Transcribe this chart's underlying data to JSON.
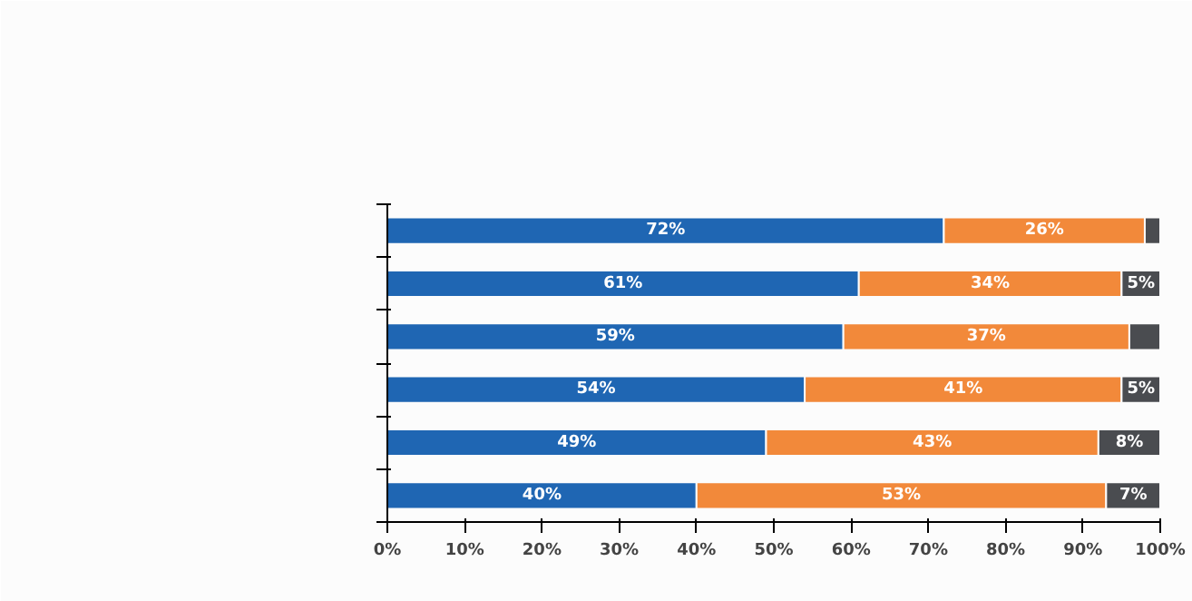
{
  "chart_data": {
    "type": "bar",
    "orientation": "horizontal",
    "stacked": true,
    "categories": [
      null,
      null,
      null,
      null,
      null,
      null
    ],
    "series": [
      {
        "color": "#1f66b3",
        "values": [
          72,
          61,
          59,
          54,
          49,
          40
        ],
        "value_labels": [
          "72%",
          "61%",
          "59%",
          "54%",
          "49%",
          "40%"
        ]
      },
      {
        "color": "#f2893a",
        "values": [
          26,
          34,
          37,
          41,
          43,
          53
        ],
        "value_labels": [
          "26%",
          "34%",
          "37%",
          "41%",
          "43%",
          "53%"
        ]
      },
      {
        "color": "#4a4c50",
        "values": [
          2,
          5,
          4,
          5,
          8,
          7
        ],
        "value_labels": [
          null,
          "5%",
          null,
          "5%",
          "8%",
          "7%"
        ]
      }
    ],
    "xlim": [
      0,
      100
    ],
    "xticks": [
      {
        "value": 0,
        "label": "0%"
      },
      {
        "value": 10,
        "label": "10%"
      },
      {
        "value": 20,
        "label": "20%"
      },
      {
        "value": 30,
        "label": "30%"
      },
      {
        "value": 40,
        "label": "40%"
      },
      {
        "value": 50,
        "label": "50%"
      },
      {
        "value": 60,
        "label": "60%"
      },
      {
        "value": 70,
        "label": "70%"
      },
      {
        "value": 80,
        "label": "80%"
      },
      {
        "value": 90,
        "label": "90%"
      },
      {
        "value": 100,
        "label": "100%"
      }
    ],
    "tick_labels": "x",
    "grid": false
  }
}
